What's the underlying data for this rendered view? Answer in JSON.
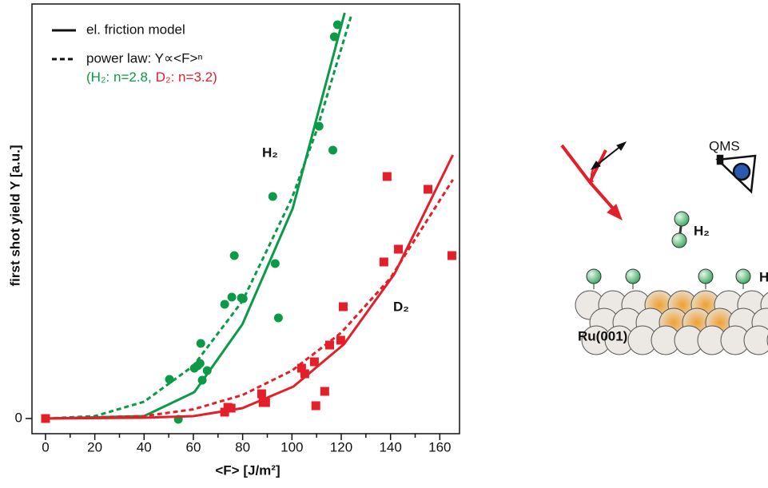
{
  "chart_data": {
    "type": "scatter",
    "xlabel": "<F> [J/m²]",
    "ylabel": "first shot yield Y [a.u.]",
    "xlim": [
      -5.5,
      168
    ],
    "xticks": [
      0,
      20,
      40,
      60,
      80,
      100,
      120,
      140,
      160
    ],
    "xminorticks": [
      10,
      30,
      50,
      70,
      90,
      110,
      130,
      150
    ],
    "ylim": [
      -3.8,
      103.8
    ],
    "yticks": [
      0
    ],
    "legend": [
      {
        "label": "el. friction model",
        "dash": false
      },
      {
        "label": "power law: Y∝<F>ⁿ",
        "dash": true
      }
    ],
    "legend_note": [
      "(H₂: n=2.8,",
      "D₂: n=3.2)"
    ],
    "series": [
      {
        "name": "H₂",
        "color": "#0a9a48",
        "marker": "circle",
        "x": [
          50.3,
          53.9,
          60.4,
          61.7,
          62.7,
          63,
          63.6,
          65.6,
          72.7,
          75.6,
          76.6,
          79.5,
          80.2,
          92.2,
          93.2,
          94.5,
          111,
          116.6,
          117.2,
          118.5
        ],
        "values": [
          9.8,
          -0.2,
          12.6,
          13.2,
          13.8,
          18.8,
          9.6,
          12,
          28.6,
          30.4,
          40.8,
          30.2,
          30,
          55.6,
          38.8,
          25.2,
          73.2,
          67.2,
          95.6,
          98.6
        ],
        "model": {
          "x": [
            0,
            40,
            60.4,
            79.9,
            100.3,
            121.4
          ],
          "values": [
            0,
            0.6,
            6.6,
            23.6,
            52.6,
            101.6
          ]
        },
        "power_law": {
          "x": [
            0,
            20,
            40,
            60,
            80,
            100,
            110,
            124
          ],
          "values": [
            0,
            0.6,
            4.2,
            13.2,
            29.5,
            55.2,
            72.1,
            100.8
          ]
        }
      },
      {
        "name": "D₂",
        "color": "#e3202a",
        "marker": "square",
        "x": [
          0,
          72.7,
          74,
          75.3,
          87.7,
          88.3,
          89.3,
          103.9,
          105.2,
          109.1,
          109.7,
          113.3,
          115.3,
          119.8,
          120.8,
          137.3,
          138.6,
          143.2,
          155.2,
          164.9
        ],
        "values": [
          0,
          1.6,
          2.8,
          2.6,
          6.2,
          4,
          4,
          12.6,
          11.2,
          14.2,
          3.2,
          6.8,
          18.4,
          19.6,
          28,
          39.2,
          60.6,
          42.4,
          57.4,
          40.8
        ],
        "model": {
          "x": [
            0,
            40,
            60.1,
            79.9,
            89.9,
            100.6,
            121.1,
            141.6,
            165.3
          ],
          "values": [
            0,
            0.2,
            0.6,
            2.6,
            5.2,
            8,
            18.6,
            36.2,
            66
          ]
        },
        "power_law": {
          "x": [
            0,
            40,
            60,
            80,
            100,
            120,
            140,
            165.3
          ],
          "values": [
            0,
            0.6,
            2.3,
            5.9,
            12,
            21.5,
            35.2,
            59.8
          ]
        }
      }
    ]
  },
  "diagram": {
    "detector": "QMS",
    "molecule": "H₂",
    "adsorbate": "H",
    "surface": "Ru(001)"
  }
}
